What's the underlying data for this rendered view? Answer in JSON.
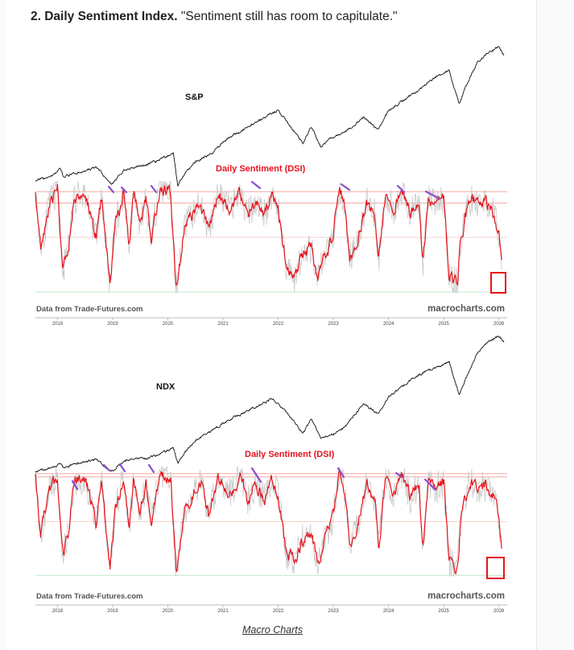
{
  "heading": {
    "bold": "2. Daily Sentiment Index.",
    "quote": "\"Sentiment still has room to capitulate.\""
  },
  "credit": "Macro Charts",
  "colors": {
    "price": "#111111",
    "dsi": "#e8121b",
    "dsi_raw": "#c9c9c9",
    "peak_marker": "#8a4fd0",
    "box": "#e8121b",
    "band_high": "#f3a7a0",
    "band_mid": "#f6d0cc",
    "band_low": "#bfe8c8"
  },
  "chart_data": [
    {
      "type": "line",
      "price_label": "S&P",
      "dsi_label": "Daily Sentiment (DSI)",
      "source_left": "Data from Trade-Futures.com",
      "source_right": "macrocharts.com",
      "x_ticks": [
        "2018",
        "2019",
        "2020",
        "2021",
        "2022",
        "2023",
        "2024",
        "2025",
        "2026"
      ],
      "xlim": [
        2017.6,
        2026.15
      ],
      "dsi_ylim": [
        0,
        100
      ],
      "dsi_reference_lines": [
        90,
        80,
        50,
        2
      ],
      "series": [
        {
          "name": "S&P",
          "x": [
            2017.6,
            2017.9,
            2018.05,
            2018.1,
            2018.3,
            2018.7,
            2018.8,
            2018.98,
            2019.2,
            2019.4,
            2019.6,
            2019.9,
            2020.1,
            2020.18,
            2020.22,
            2020.5,
            2020.8,
            2021.0,
            2021.5,
            2021.99,
            2022.2,
            2022.45,
            2022.6,
            2022.78,
            2022.95,
            2023.2,
            2023.55,
            2023.82,
            2024.0,
            2024.5,
            2024.9,
            2025.1,
            2025.28,
            2025.4,
            2025.6,
            2025.8,
            2026.0,
            2026.1
          ],
          "values": [
            2470,
            2600,
            2850,
            2600,
            2680,
            2900,
            2700,
            2350,
            2800,
            2900,
            2980,
            3200,
            3380,
            2237,
            2480,
            3100,
            3350,
            3750,
            4300,
            4790,
            4300,
            3700,
            4250,
            3580,
            3850,
            4050,
            4550,
            4120,
            4780,
            5400,
            5950,
            6100,
            4980,
            5600,
            6350,
            6700,
            6900,
            6600
          ]
        },
        {
          "name": "Daily Sentiment (DSI)",
          "x": [
            2017.6,
            2017.7,
            2017.85,
            2018.0,
            2018.1,
            2018.2,
            2018.3,
            2018.5,
            2018.7,
            2018.8,
            2018.95,
            2019.05,
            2019.2,
            2019.3,
            2019.38,
            2019.5,
            2019.6,
            2019.7,
            2019.85,
            2020.05,
            2020.15,
            2020.2,
            2020.3,
            2020.45,
            2020.6,
            2020.75,
            2020.9,
            2021.0,
            2021.15,
            2021.3,
            2021.45,
            2021.6,
            2021.75,
            2021.9,
            2022.0,
            2022.15,
            2022.3,
            2022.45,
            2022.6,
            2022.72,
            2022.8,
            2022.9,
            2023.0,
            2023.1,
            2023.2,
            2023.3,
            2023.45,
            2023.6,
            2023.75,
            2023.82,
            2023.95,
            2024.1,
            2024.25,
            2024.4,
            2024.55,
            2024.62,
            2024.72,
            2024.85,
            2025.0,
            2025.1,
            2025.25,
            2025.3,
            2025.45,
            2025.6,
            2025.75,
            2025.9,
            2026.0,
            2026.05
          ],
          "values": [
            90,
            40,
            78,
            92,
            20,
            40,
            85,
            88,
            50,
            85,
            8,
            60,
            90,
            45,
            88,
            60,
            85,
            50,
            92,
            90,
            5,
            20,
            60,
            70,
            80,
            55,
            88,
            82,
            75,
            88,
            70,
            82,
            70,
            90,
            75,
            25,
            15,
            35,
            40,
            10,
            30,
            40,
            55,
            92,
            80,
            30,
            50,
            80,
            72,
            30,
            88,
            75,
            88,
            70,
            85,
            25,
            85,
            80,
            85,
            15,
            10,
            45,
            82,
            80,
            82,
            72,
            55,
            30
          ]
        }
      ]
    },
    {
      "type": "line",
      "price_label": "NDX",
      "dsi_label": "Daily Sentiment (DSI)",
      "source_left": "Data from Trade-Futures.com",
      "source_right": "macrocharts.com",
      "x_ticks": [
        "2018",
        "2019",
        "2020",
        "2021",
        "2022",
        "2023",
        "2024",
        "2025",
        "2026"
      ],
      "xlim": [
        2017.6,
        2026.15
      ],
      "dsi_ylim": [
        0,
        100
      ],
      "dsi_reference_lines": [
        93,
        90,
        50,
        2
      ],
      "series": [
        {
          "name": "NDX",
          "x": [
            2017.6,
            2017.9,
            2018.05,
            2018.1,
            2018.3,
            2018.7,
            2018.8,
            2018.98,
            2019.2,
            2019.4,
            2019.6,
            2019.9,
            2020.1,
            2020.18,
            2020.22,
            2020.5,
            2020.8,
            2021.0,
            2021.5,
            2021.9,
            2022.2,
            2022.45,
            2022.6,
            2022.78,
            2022.95,
            2023.2,
            2023.55,
            2023.82,
            2024.0,
            2024.5,
            2024.9,
            2025.1,
            2025.28,
            2025.4,
            2025.6,
            2025.8,
            2026.0,
            2026.1
          ],
          "values": [
            5900,
            6400,
            7000,
            6400,
            6900,
            7600,
            7000,
            5900,
            7400,
            7700,
            7800,
            8600,
            9300,
            6994,
            7800,
            10500,
            11800,
            12900,
            15000,
            16500,
            14000,
            11500,
            13500,
            10700,
            11200,
            12300,
            15800,
            14200,
            16800,
            19800,
            21200,
            21800,
            17100,
            19500,
            23000,
            24800,
            25600,
            24800
          ]
        },
        {
          "name": "Daily Sentiment (DSI)",
          "x": [
            2017.6,
            2017.7,
            2017.85,
            2018.0,
            2018.1,
            2018.2,
            2018.3,
            2018.5,
            2018.7,
            2018.8,
            2018.95,
            2019.05,
            2019.2,
            2019.3,
            2019.38,
            2019.5,
            2019.6,
            2019.7,
            2019.85,
            2020.05,
            2020.15,
            2020.2,
            2020.3,
            2020.45,
            2020.6,
            2020.75,
            2020.9,
            2021.0,
            2021.15,
            2021.3,
            2021.45,
            2021.6,
            2021.75,
            2021.9,
            2022.0,
            2022.15,
            2022.3,
            2022.45,
            2022.6,
            2022.72,
            2022.8,
            2022.9,
            2023.0,
            2023.1,
            2023.2,
            2023.3,
            2023.45,
            2023.6,
            2023.75,
            2023.82,
            2023.95,
            2024.1,
            2024.25,
            2024.4,
            2024.55,
            2024.62,
            2024.72,
            2024.85,
            2025.0,
            2025.1,
            2025.25,
            2025.3,
            2025.45,
            2025.6,
            2025.75,
            2025.9,
            2026.0,
            2026.05
          ],
          "values": [
            90,
            40,
            78,
            88,
            20,
            40,
            85,
            88,
            50,
            85,
            8,
            60,
            92,
            45,
            88,
            60,
            85,
            50,
            92,
            90,
            5,
            20,
            60,
            75,
            85,
            55,
            88,
            85,
            75,
            90,
            70,
            82,
            70,
            90,
            75,
            20,
            15,
            35,
            40,
            10,
            30,
            40,
            55,
            95,
            80,
            30,
            50,
            85,
            72,
            30,
            88,
            75,
            90,
            70,
            85,
            25,
            85,
            80,
            85,
            15,
            10,
            45,
            85,
            80,
            82,
            72,
            55,
            25
          ]
        }
      ]
    }
  ]
}
